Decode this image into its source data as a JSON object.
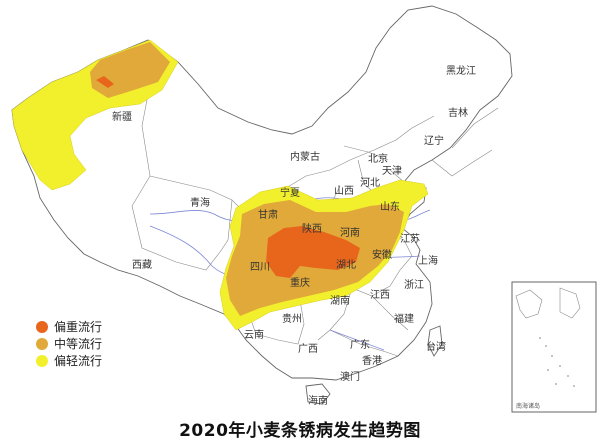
{
  "title": "2020年小麦条锈病发生趋势图",
  "legend": [
    {
      "label": "偏重流行",
      "color": "#E8661C"
    },
    {
      "label": "中等流行",
      "color": "#E0A93A"
    },
    {
      "label": "偏轻流行",
      "color": "#F2EF2C"
    }
  ],
  "provinces": [
    "新疆",
    "西藏",
    "青海",
    "甘肃",
    "宁夏",
    "内蒙古",
    "北京",
    "天津",
    "河北",
    "山西",
    "陕西",
    "四川",
    "重庆",
    "湖北",
    "河南",
    "山东",
    "安徽",
    "江苏",
    "上海",
    "浙江",
    "江西",
    "湖南",
    "贵州",
    "云南",
    "广西",
    "广东",
    "福建",
    "台湾",
    "海南",
    "辽宁",
    "吉林",
    "黑龙江",
    "澳门",
    "香港"
  ],
  "inset_label": "南海诸岛"
}
